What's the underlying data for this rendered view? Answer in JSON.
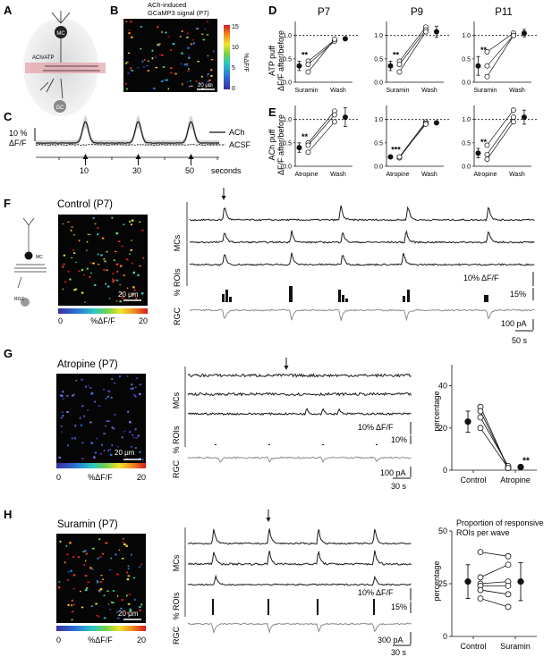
{
  "panels": {
    "A": {
      "letter": "A",
      "label_mc": "MC",
      "label_gc": "GC",
      "label_achatp": "ACh/ATP"
    },
    "B": {
      "letter": "B",
      "title_line1": "ACh-induced",
      "title_line2": "GCaMP3 signal (P7)",
      "scale": "20 μm",
      "cbar_label": "%ΔF/F",
      "cbar_ticks": [
        "15",
        "10",
        "5",
        "0"
      ]
    },
    "C": {
      "letter": "C",
      "ylabel_line1": "10 %",
      "ylabel_line2": "ΔF/F",
      "ticks": [
        "10",
        "30",
        "50"
      ],
      "xunit": "seconds",
      "legend_ach": "ACh",
      "legend_acsf": "ACSF"
    },
    "D": {
      "letter": "D",
      "ylabel_line1": "ATP puff",
      "ylabel_line2": "ΔF/F after/before",
      "ages": [
        "P7",
        "P9",
        "P11"
      ],
      "x_drug": "Suramin",
      "x_wash": "Wash",
      "yticks": [
        "0.0",
        "0.5",
        "1.0"
      ],
      "sig": [
        "**",
        "**",
        "**"
      ]
    },
    "E": {
      "letter": "E",
      "ylabel_line1": "ACh puff",
      "ylabel_line2": "ΔF/F after/before",
      "x_drug": "Atropine",
      "x_wash": "Wash",
      "yticks": [
        "0.0",
        "0.5",
        "1.0"
      ],
      "sig": [
        "**",
        "***",
        "**"
      ]
    },
    "F": {
      "letter": "F",
      "title": "Control (P7)",
      "scale": "20 μm",
      "cbar_min": "0",
      "cbar_label": "%ΔF/F",
      "cbar_max": "20",
      "row_mcs": "MCs",
      "row_rois": "% ROIs",
      "row_rgc": "RGC",
      "scale_df": "10% ΔF/F",
      "scale_roi": "15%",
      "scale_pa": "100 pA",
      "scale_s": "50 s",
      "label_mc": "MC",
      "label_rgc": "RGC"
    },
    "G": {
      "letter": "G",
      "title": "Atropine (P7)",
      "scale": "20 μm",
      "cbar_min": "0",
      "cbar_label": "%ΔF/F",
      "cbar_max": "20",
      "row_mcs": "MCs",
      "row_rois": "% ROIs",
      "row_rgc": "RGC",
      "scale_df": "10% ΔF/F",
      "scale_roi": "10%",
      "scale_pa": "100 pA",
      "scale_s": "30 s",
      "plot_ylabel": "percentage",
      "plot_yticks": [
        "0",
        "20",
        "40"
      ],
      "plot_x": [
        "Control",
        "Atropine"
      ],
      "sig": "**"
    },
    "H": {
      "letter": "H",
      "title": "Suramin (P7)",
      "scale": "20 μm",
      "cbar_min": "0",
      "cbar_label": "%ΔF/F",
      "cbar_max": "20",
      "row_mcs": "MCs",
      "row_rois": "% ROIs",
      "row_rgc": "RGC",
      "scale_df": "10% ΔF/F",
      "scale_roi": "15%",
      "scale_pa": "300 pA",
      "scale_s": "30 s",
      "plot_title_line1": "Proportion of responsive",
      "plot_title_line2": "ROIs per wave",
      "plot_ylabel": "percentage",
      "plot_yticks": [
        "0",
        "25",
        "50"
      ],
      "plot_x": [
        "Control",
        "Suramin"
      ]
    }
  },
  "colors": {
    "trace": "#1a1a1a",
    "rgc": "#8c8c8c",
    "image_bg": "#050505",
    "shade": "#d4d4d4"
  },
  "chart_data": [
    {
      "type": "line",
      "panel": "C",
      "xlabel": "seconds",
      "x_ticks": [
        10,
        30,
        50
      ],
      "series": [
        {
          "name": "ACh",
          "peaks_at": [
            10,
            30,
            50
          ]
        },
        {
          "name": "ACSF",
          "peaks_at": []
        }
      ]
    },
    {
      "type": "scatter",
      "panel": "D-P7",
      "categories": [
        "Suramin",
        "Wash"
      ],
      "ylim": [
        0,
        1.3
      ],
      "paired": [
        [
          0.45,
          0.9
        ],
        [
          0.38,
          0.88
        ],
        [
          0.22,
          0.92
        ]
      ],
      "mean": [
        0.35,
        0.93
      ],
      "sem": [
        0.1,
        0.03
      ],
      "sig": "**"
    },
    {
      "type": "scatter",
      "panel": "D-P9",
      "categories": [
        "Suramin",
        "Wash"
      ],
      "ylim": [
        0,
        1.3
      ],
      "paired": [
        [
          0.45,
          1.18
        ],
        [
          0.38,
          1.12
        ],
        [
          0.22,
          1.08
        ]
      ],
      "mean": [
        0.35,
        1.08
      ],
      "sem": [
        0.1,
        0.12
      ],
      "sig": "**"
    },
    {
      "type": "scatter",
      "panel": "D-P11",
      "categories": [
        "Suramin",
        "Wash"
      ],
      "ylim": [
        0,
        1.3
      ],
      "paired": [
        [
          0.65,
          1.05
        ],
        [
          0.35,
          1.0
        ],
        [
          0.12,
          1.0
        ]
      ],
      "mean": [
        0.35,
        1.05
      ],
      "sem": [
        0.2,
        0.08
      ],
      "sig": "**"
    },
    {
      "type": "scatter",
      "panel": "E-P7",
      "categories": [
        "Atropine",
        "Wash"
      ],
      "ylim": [
        0,
        1.3
      ],
      "paired": [
        [
          0.5,
          1.18
        ],
        [
          0.45,
          1.1
        ],
        [
          0.3,
          0.95
        ]
      ],
      "mean": [
        0.4,
        1.05
      ],
      "sem": [
        0.1,
        0.2
      ],
      "sig": "**"
    },
    {
      "type": "scatter",
      "panel": "E-P9",
      "categories": [
        "Atropine",
        "Wash"
      ],
      "ylim": [
        0,
        1.3
      ],
      "paired": [
        [
          0.2,
          0.95
        ],
        [
          0.18,
          0.92
        ],
        [
          0.2,
          0.9
        ]
      ],
      "mean": [
        0.2,
        0.93
      ],
      "sem": [
        0.02,
        0.03
      ],
      "sig": "***"
    },
    {
      "type": "scatter",
      "panel": "E-P11",
      "categories": [
        "Atropine",
        "Wash"
      ],
      "ylim": [
        0,
        1.3
      ],
      "paired": [
        [
          0.45,
          1.2
        ],
        [
          0.25,
          1.05
        ],
        [
          0.15,
          0.95
        ]
      ],
      "mean": [
        0.28,
        1.05
      ],
      "sem": [
        0.1,
        0.15
      ],
      "sig": "**"
    },
    {
      "type": "scatter",
      "panel": "G",
      "categories": [
        "Control",
        "Atropine"
      ],
      "ylabel": "percentage",
      "ylim": [
        0,
        50
      ],
      "paired": [
        [
          30,
          1
        ],
        [
          28,
          1
        ],
        [
          25,
          2
        ],
        [
          20,
          1
        ]
      ],
      "mean": [
        23,
        1.5
      ],
      "sem": [
        5,
        0.5
      ],
      "sig": "**"
    },
    {
      "type": "scatter",
      "panel": "H",
      "categories": [
        "Control",
        "Suramin"
      ],
      "ylabel": "percentage",
      "ylim": [
        0,
        50
      ],
      "title": "Proportion of responsive ROIs per wave",
      "paired": [
        [
          40,
          38
        ],
        [
          28,
          34
        ],
        [
          25,
          26
        ],
        [
          24,
          24
        ],
        [
          22,
          20
        ],
        [
          18,
          14
        ]
      ],
      "mean": [
        26,
        26
      ],
      "sem": [
        8,
        9
      ]
    }
  ]
}
